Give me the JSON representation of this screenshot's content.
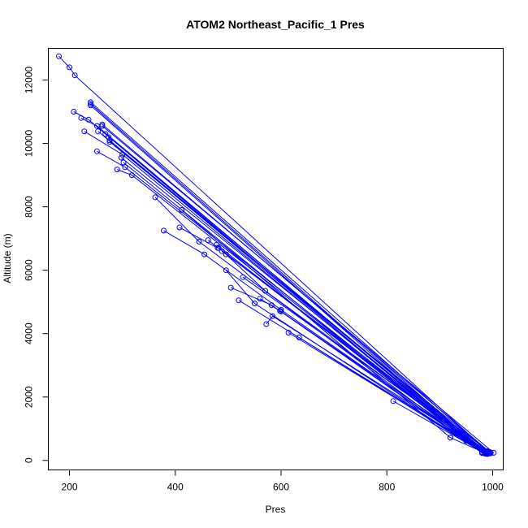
{
  "chart_data": {
    "type": "scatter",
    "title": "ATOM2 Northeast_Pacific_1 Pres",
    "xlabel": "Pres",
    "ylabel": "Altitude (m)",
    "xlim": [
      160,
      1020
    ],
    "ylim": [
      -300,
      13000
    ],
    "x_ticks": [
      200,
      400,
      600,
      800,
      1000
    ],
    "y_ticks": [
      0,
      2000,
      4000,
      6000,
      8000,
      10000,
      12000
    ],
    "grid": false,
    "color": "#0000ff",
    "marker": "open-circle",
    "series": [
      {
        "values": [
          [
            180,
            12750
          ],
          [
            200,
            12400
          ],
          [
            210,
            12150
          ],
          [
            990,
            290
          ]
        ]
      },
      {
        "values": [
          [
            240,
            11300
          ],
          [
            990,
            280
          ]
        ]
      },
      {
        "values": [
          [
            240,
            11250
          ],
          [
            985,
            250
          ]
        ]
      },
      {
        "values": [
          [
            240,
            11200
          ],
          [
            980,
            260
          ]
        ]
      },
      {
        "values": [
          [
            208,
            11000
          ],
          [
            236,
            10750
          ],
          [
            980,
            240
          ]
        ]
      },
      {
        "values": [
          [
            222,
            10800
          ],
          [
            252,
            10550
          ],
          [
            985,
            270
          ]
        ]
      },
      {
        "values": [
          [
            262,
            10600
          ],
          [
            995,
            260
          ]
        ]
      },
      {
        "values": [
          [
            262,
            10550
          ],
          [
            1002,
            240
          ]
        ]
      },
      {
        "values": [
          [
            228,
            10380
          ],
          [
            300,
            9650
          ],
          [
            985,
            220
          ]
        ]
      },
      {
        "values": [
          [
            254,
            10380
          ],
          [
            986,
            210
          ]
        ]
      },
      {
        "values": [
          [
            268,
            10300
          ],
          [
            990,
            230
          ]
        ]
      },
      {
        "values": [
          [
            274,
            10200
          ],
          [
            276,
            10100
          ],
          [
            988,
            260
          ]
        ]
      },
      {
        "values": [
          [
            276,
            10050
          ],
          [
            996,
            220
          ]
        ]
      },
      {
        "values": [
          [
            252,
            9750
          ],
          [
            305,
            9250
          ],
          [
            990,
            200
          ]
        ]
      },
      {
        "values": [
          [
            290,
            9180
          ],
          [
            318,
            9000
          ],
          [
            985,
            240
          ]
        ]
      },
      {
        "values": [
          [
            302,
            9400
          ],
          [
            950,
            620
          ]
        ]
      },
      {
        "values": [
          [
            298,
            9550
          ],
          [
            990,
            250
          ]
        ]
      },
      {
        "values": [
          [
            362,
            8300
          ],
          [
            445,
            6900
          ],
          [
            980,
            230
          ]
        ]
      },
      {
        "values": [
          [
            412,
            7900
          ],
          [
            920,
            720
          ]
        ]
      },
      {
        "values": [
          [
            378,
            7250
          ],
          [
            455,
            6500
          ],
          [
            600,
            4750
          ],
          [
            990,
            220
          ]
        ]
      },
      {
        "values": [
          [
            408,
            7350
          ],
          [
            480,
            6700
          ]
        ]
      },
      {
        "values": [
          [
            462,
            6950
          ],
          [
            990,
            230
          ]
        ]
      },
      {
        "values": [
          [
            478,
            6800
          ],
          [
            980,
            250
          ]
        ]
      },
      {
        "values": [
          [
            482,
            6700
          ],
          [
            985,
            240
          ]
        ]
      },
      {
        "values": [
          [
            488,
            6600
          ],
          [
            995,
            260
          ]
        ]
      },
      {
        "values": [
          [
            496,
            6500
          ],
          [
            570,
            5350
          ],
          [
            990,
            240
          ]
        ]
      },
      {
        "values": [
          [
            496,
            6000
          ],
          [
            550,
            4950
          ],
          [
            980,
            250
          ]
        ]
      },
      {
        "values": [
          [
            505,
            5450
          ],
          [
            582,
            4900
          ],
          [
            985,
            230
          ]
        ]
      },
      {
        "values": [
          [
            520,
            5050
          ],
          [
            985,
            260
          ]
        ]
      },
      {
        "values": [
          [
            528,
            5780
          ],
          [
            990,
            280
          ]
        ]
      },
      {
        "values": [
          [
            560,
            5100
          ],
          [
            600,
            4700
          ],
          [
            980,
            250
          ]
        ]
      },
      {
        "values": [
          [
            572,
            4300
          ],
          [
            584,
            4550
          ],
          [
            990,
            240
          ]
        ]
      },
      {
        "values": [
          [
            598,
            4720
          ],
          [
            992,
            220
          ]
        ]
      },
      {
        "values": [
          [
            614,
            4030
          ],
          [
            985,
            240
          ]
        ]
      },
      {
        "values": [
          [
            634,
            3880
          ],
          [
            980,
            250
          ]
        ]
      },
      {
        "values": [
          [
            812,
            1870
          ],
          [
            985,
            230
          ]
        ]
      },
      {
        "values": [
          [
            920,
            720
          ],
          [
            986,
            230
          ]
        ]
      },
      {
        "values": [
          [
            950,
            620
          ],
          [
            995,
            240
          ]
        ]
      }
    ]
  }
}
